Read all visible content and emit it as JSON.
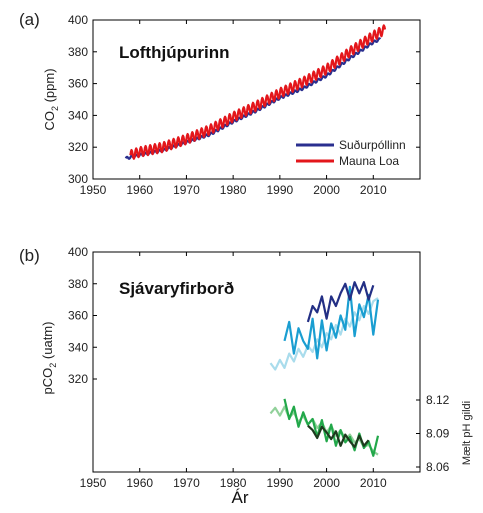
{
  "chart_data": [
    {
      "type": "line",
      "panel_label": "(a)",
      "title": "Lofthjúpurinn",
      "xlabel": "",
      "ylabel": "CO2 (ppm)",
      "xlim": [
        1950,
        2020
      ],
      "ylim": [
        300,
        400
      ],
      "xticks": [
        "1950",
        "1960",
        "1970",
        "1980",
        "1990",
        "2000",
        "2010"
      ],
      "yticks": [
        "300",
        "320",
        "340",
        "360",
        "380",
        "400"
      ],
      "legend_position": "bottom-right",
      "series": [
        {
          "name": "Suðurpóllinn",
          "color": "#2a2f8f",
          "seasonal_amplitude": 0.8,
          "x": [
            1957,
            1960,
            1965,
            1970,
            1975,
            1980,
            1985,
            1990,
            1995,
            2000,
            2005,
            2010,
            2011.5
          ],
          "y": [
            313,
            315,
            318,
            323,
            328,
            336,
            343,
            351,
            357,
            365,
            376,
            386,
            388
          ]
        },
        {
          "name": "Mauna Loa",
          "color": "#e3161b",
          "seasonal_amplitude": 3,
          "x": [
            1958,
            1960,
            1965,
            1970,
            1975,
            1980,
            1985,
            1990,
            1995,
            2000,
            2005,
            2010,
            2012.5
          ],
          "y": [
            315,
            317,
            320,
            325,
            331,
            339,
            346,
            354,
            361,
            369,
            380,
            390,
            394
          ]
        }
      ]
    },
    {
      "type": "line",
      "panel_label": "(b)",
      "title": "Sjávaryfirborð",
      "xlabel": "Ár",
      "ylabel": "pCO2 (uatm)",
      "ylabel_right": "Mælt pH gildi",
      "xlim": [
        1950,
        2020
      ],
      "ylim": [
        260,
        400
      ],
      "xticks": [
        "1950",
        "1960",
        "1970",
        "1980",
        "1990",
        "2000",
        "2010"
      ],
      "yticks": [
        "320",
        "340",
        "360",
        "380",
        "400"
      ],
      "ph_ticks": [
        8.06,
        8.09,
        8.12
      ],
      "ph_tick_labels": [
        "8.06",
        "8.09",
        "8.12"
      ],
      "ph_ylim": [
        8.06,
        8.12
      ],
      "pco2_series": [
        {
          "color": "#a9dcec",
          "x": [
            1988,
            1989,
            1990,
            1991,
            1992,
            1993,
            1994,
            1995,
            1996,
            1997,
            1998,
            1999,
            2000,
            2001,
            2002,
            2003,
            2004,
            2005,
            2006,
            2007,
            2008,
            2009,
            2010,
            2011
          ],
          "y": [
            330,
            326,
            332,
            327,
            336,
            331,
            339,
            334,
            341,
            337,
            345,
            340,
            349,
            345,
            354,
            348,
            358,
            353,
            362,
            357,
            366,
            361,
            369,
            371
          ]
        },
        {
          "color": "#1a9ed1",
          "x": [
            1991,
            1992,
            1993,
            1994,
            1995,
            1996,
            1997,
            1998,
            1999,
            2000,
            2001,
            2002,
            2003,
            2004,
            2005,
            2006,
            2007,
            2008,
            2009,
            2010,
            2011
          ],
          "y": [
            344,
            356,
            336,
            352,
            344,
            339,
            358,
            333,
            357,
            338,
            355,
            346,
            360,
            351,
            378,
            347,
            367,
            359,
            373,
            348,
            370
          ]
        },
        {
          "color": "#232f85",
          "x": [
            1996,
            1997,
            1998,
            1999,
            2000,
            2001,
            2002,
            2003,
            2004,
            2005,
            2006,
            2007,
            2008,
            2009,
            2010
          ],
          "y": [
            356,
            366,
            362,
            372,
            358,
            372,
            366,
            374,
            380,
            370,
            381,
            374,
            381,
            370,
            379
          ]
        }
      ],
      "ph_series": [
        {
          "color": "#91d19a",
          "x": [
            1988,
            1989,
            1990,
            1991,
            1992,
            1993,
            1994,
            1995,
            1996,
            1997,
            1998,
            1999,
            2000,
            2001,
            2002,
            2003,
            2004,
            2005,
            2006,
            2007,
            2008,
            2009,
            2010,
            2011
          ],
          "y": [
            8.108,
            8.113,
            8.106,
            8.114,
            8.104,
            8.109,
            8.1,
            8.106,
            8.098,
            8.103,
            8.095,
            8.1,
            8.091,
            8.097,
            8.088,
            8.093,
            8.085,
            8.089,
            8.082,
            8.085,
            8.078,
            8.08,
            8.074,
            8.071
          ]
        },
        {
          "color": "#22a84a",
          "x": [
            1991,
            1992,
            1993,
            1994,
            1995,
            1996,
            1997,
            1998,
            1999,
            2000,
            2001,
            2002,
            2003,
            2004,
            2005,
            2006,
            2007,
            2008,
            2009,
            2010,
            2011
          ],
          "y": [
            8.121,
            8.103,
            8.114,
            8.096,
            8.109,
            8.098,
            8.103,
            8.087,
            8.102,
            8.083,
            8.098,
            8.079,
            8.093,
            8.082,
            8.087,
            8.075,
            8.09,
            8.077,
            8.083,
            8.07,
            8.088
          ]
        },
        {
          "color": "#1e3a1e",
          "x": [
            1996,
            1997,
            1998,
            1999,
            2000,
            2001,
            2002,
            2003,
            2004,
            2005,
            2006,
            2007,
            2008,
            2009
          ],
          "y": [
            8.097,
            8.093,
            8.086,
            8.096,
            8.091,
            8.085,
            8.092,
            8.079,
            8.089,
            8.083,
            8.078,
            8.088,
            8.079,
            8.084
          ]
        }
      ]
    }
  ]
}
